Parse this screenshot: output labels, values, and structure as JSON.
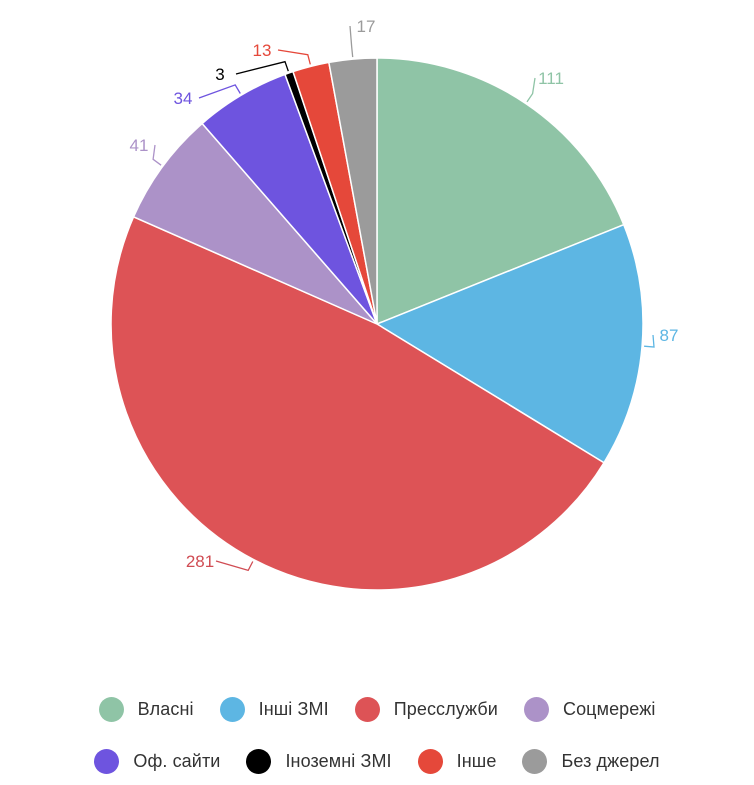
{
  "chart_data": {
    "type": "pie",
    "title": "",
    "legend_position": "bottom",
    "slices": [
      {
        "label": "Власні",
        "value": 111,
        "value_label": "111",
        "color": "#8fc4a6",
        "label_color": "#8fc4a6"
      },
      {
        "label": "Інші ЗМІ",
        "value": 87,
        "value_label": "87",
        "color": "#5db6e3",
        "label_color": "#5db6e3"
      },
      {
        "label": "Пресслужби",
        "value": 281,
        "value_label": "281",
        "color": "#dd5356",
        "label_color": "#d04c53"
      },
      {
        "label": "Соцмережі",
        "value": 41,
        "value_label": "41",
        "color": "#ac92c8",
        "label_color": "#ac92c8"
      },
      {
        "label": "Оф. сайти",
        "value": 34,
        "value_label": "34",
        "color": "#6e54df",
        "label_color": "#6e54df"
      },
      {
        "label": "Іноземні ЗМІ",
        "value": 3,
        "value_label": "3",
        "color": "#000000",
        "label_color": "#000000"
      },
      {
        "label": "Інше",
        "value": 13,
        "value_label": "13",
        "color": "#e5483a",
        "label_color": "#e5483a"
      },
      {
        "label": "Без джерел",
        "value": 17,
        "value_label": "17",
        "color": "#9b9b9b",
        "label_color": "#9b9b9b"
      }
    ]
  }
}
